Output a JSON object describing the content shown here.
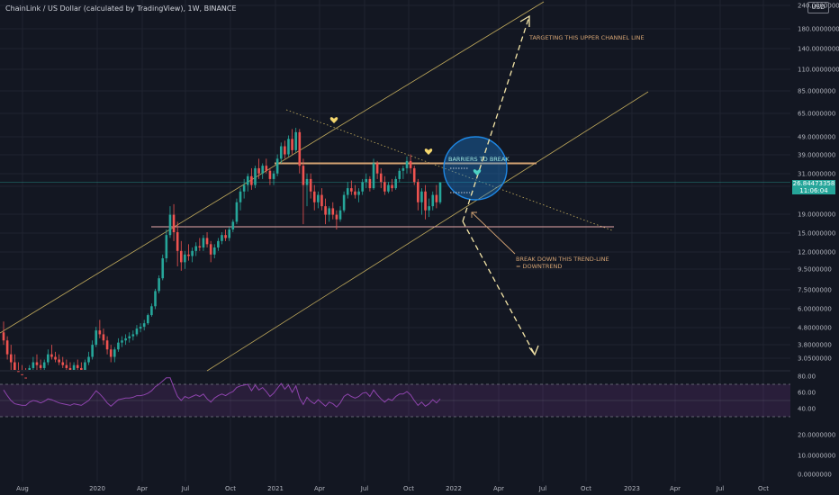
{
  "header": {
    "title": "ChainLink / US Dollar (calculated by TradingView), 1W, BINANCE",
    "currency": "USD"
  },
  "price_label": {
    "price": "26.84473358",
    "countdown": "11:06:04"
  },
  "colors": {
    "background": "#131722",
    "up": "#26a69a",
    "down": "#ef5350",
    "annotation": "#d4a373",
    "rsi": "#8e44ad",
    "channel": "#f5d76e",
    "circle": "#1e88e5"
  },
  "annotations": {
    "target": "TARGETING THIS UPPER CHANNEL LINE",
    "barriers": "BARRIERS TO BREAK",
    "breakdown_1": "BREAK DOWN THIS TREND-LINE",
    "breakdown_2": "= DOWNTREND"
  },
  "chart_data": [
    {
      "type": "candlestick",
      "scale": "log",
      "ylim": [
        3.05,
        240
      ],
      "x_ticks": [
        "Aug",
        "2020",
        "Apr",
        "Jul",
        "Oct",
        "2021",
        "Apr",
        "Jul",
        "Oct",
        "2022",
        "Apr",
        "Jul",
        "Oct",
        "2023",
        "Apr",
        "Jul",
        "Oct"
      ],
      "y_ticks": [
        "240.0000000",
        "180.0000000",
        "140.0000000",
        "110.0000000",
        "85.0000000",
        "65.0000000",
        "49.0000000",
        "39.0000000",
        "31.0000000",
        "24.0000000",
        "19.0000000",
        "15.0000000",
        "12.0000000",
        "9.5000000",
        "7.5000000",
        "6.0000000",
        "4.8000000",
        "3.8000000",
        "3.0500000"
      ],
      "horizontal_levels": [
        34,
        15.5
      ],
      "last_price": 26.84473358,
      "candles": [
        {
          "o": 4.2,
          "h": 4.8,
          "l": 3.6,
          "c": 3.8
        },
        {
          "o": 3.8,
          "h": 4.0,
          "l": 3.0,
          "c": 3.2
        },
        {
          "o": 3.2,
          "h": 3.6,
          "l": 2.6,
          "c": 2.9
        },
        {
          "o": 2.9,
          "h": 3.2,
          "l": 2.4,
          "c": 2.6
        },
        {
          "o": 2.6,
          "h": 2.9,
          "l": 2.3,
          "c": 2.5
        },
        {
          "o": 2.5,
          "h": 2.8,
          "l": 2.2,
          "c": 2.4
        },
        {
          "o": 2.4,
          "h": 2.7,
          "l": 2.1,
          "c": 2.3
        },
        {
          "o": 2.3,
          "h": 2.8,
          "l": 2.2,
          "c": 2.7
        },
        {
          "o": 2.7,
          "h": 3.1,
          "l": 2.5,
          "c": 2.9
        },
        {
          "o": 2.9,
          "h": 3.2,
          "l": 2.6,
          "c": 2.8
        },
        {
          "o": 2.8,
          "h": 3.0,
          "l": 2.5,
          "c": 2.7
        },
        {
          "o": 2.7,
          "h": 3.0,
          "l": 2.5,
          "c": 2.9
        },
        {
          "o": 2.9,
          "h": 3.4,
          "l": 2.8,
          "c": 3.2
        },
        {
          "o": 3.2,
          "h": 3.6,
          "l": 3.0,
          "c": 3.1
        },
        {
          "o": 3.1,
          "h": 3.3,
          "l": 2.9,
          "c": 3.0
        },
        {
          "o": 3.0,
          "h": 3.2,
          "l": 2.8,
          "c": 2.9
        },
        {
          "o": 2.9,
          "h": 3.1,
          "l": 2.7,
          "c": 2.8
        },
        {
          "o": 2.8,
          "h": 3.0,
          "l": 2.6,
          "c": 2.7
        },
        {
          "o": 2.7,
          "h": 2.9,
          "l": 2.5,
          "c": 2.6
        },
        {
          "o": 2.6,
          "h": 2.9,
          "l": 2.5,
          "c": 2.8
        },
        {
          "o": 2.8,
          "h": 3.0,
          "l": 2.6,
          "c": 2.7
        },
        {
          "o": 2.7,
          "h": 2.9,
          "l": 2.5,
          "c": 2.6
        },
        {
          "o": 2.6,
          "h": 3.0,
          "l": 2.5,
          "c": 2.9
        },
        {
          "o": 2.9,
          "h": 3.3,
          "l": 2.8,
          "c": 3.1
        },
        {
          "o": 3.1,
          "h": 3.8,
          "l": 3.0,
          "c": 3.6
        },
        {
          "o": 3.6,
          "h": 4.5,
          "l": 3.5,
          "c": 4.3
        },
        {
          "o": 4.3,
          "h": 4.9,
          "l": 3.9,
          "c": 4.1
        },
        {
          "o": 4.1,
          "h": 4.4,
          "l": 3.6,
          "c": 3.8
        },
        {
          "o": 3.8,
          "h": 4.0,
          "l": 3.2,
          "c": 3.4
        },
        {
          "o": 3.4,
          "h": 3.6,
          "l": 2.9,
          "c": 3.1
        },
        {
          "o": 3.1,
          "h": 3.5,
          "l": 2.9,
          "c": 3.4
        },
        {
          "o": 3.4,
          "h": 3.9,
          "l": 3.3,
          "c": 3.7
        },
        {
          "o": 3.7,
          "h": 4.0,
          "l": 3.5,
          "c": 3.8
        },
        {
          "o": 3.8,
          "h": 4.1,
          "l": 3.6,
          "c": 3.9
        },
        {
          "o": 3.9,
          "h": 4.2,
          "l": 3.7,
          "c": 4.0
        },
        {
          "o": 4.0,
          "h": 4.3,
          "l": 3.8,
          "c": 4.1
        },
        {
          "o": 4.1,
          "h": 4.6,
          "l": 4.0,
          "c": 4.4
        },
        {
          "o": 4.4,
          "h": 4.7,
          "l": 4.2,
          "c": 4.5
        },
        {
          "o": 4.5,
          "h": 4.9,
          "l": 4.3,
          "c": 4.7
        },
        {
          "o": 4.7,
          "h": 5.3,
          "l": 4.6,
          "c": 5.2
        },
        {
          "o": 5.2,
          "h": 6.0,
          "l": 5.1,
          "c": 5.8
        },
        {
          "o": 5.8,
          "h": 7.2,
          "l": 5.6,
          "c": 7.0
        },
        {
          "o": 7.0,
          "h": 8.5,
          "l": 6.8,
          "c": 8.2
        },
        {
          "o": 8.2,
          "h": 11.0,
          "l": 8.0,
          "c": 10.5
        },
        {
          "o": 10.5,
          "h": 15.0,
          "l": 10.0,
          "c": 14.0
        },
        {
          "o": 14.0,
          "h": 20.0,
          "l": 13.5,
          "c": 18.0
        },
        {
          "o": 18.0,
          "h": 20.5,
          "l": 13.0,
          "c": 14.5
        },
        {
          "o": 14.5,
          "h": 16.5,
          "l": 9.5,
          "c": 11.5
        },
        {
          "o": 11.5,
          "h": 13.0,
          "l": 9.0,
          "c": 10.0
        },
        {
          "o": 10.0,
          "h": 11.5,
          "l": 9.2,
          "c": 11.0
        },
        {
          "o": 11.0,
          "h": 12.5,
          "l": 10.2,
          "c": 10.8
        },
        {
          "o": 10.8,
          "h": 12.0,
          "l": 10.0,
          "c": 11.5
        },
        {
          "o": 11.5,
          "h": 12.8,
          "l": 10.8,
          "c": 12.2
        },
        {
          "o": 12.2,
          "h": 13.5,
          "l": 11.5,
          "c": 12.0
        },
        {
          "o": 12.0,
          "h": 14.0,
          "l": 11.5,
          "c": 13.5
        },
        {
          "o": 13.5,
          "h": 14.5,
          "l": 12.0,
          "c": 12.5
        },
        {
          "o": 12.5,
          "h": 13.0,
          "l": 10.0,
          "c": 11.0
        },
        {
          "o": 11.0,
          "h": 12.5,
          "l": 10.5,
          "c": 12.0
        },
        {
          "o": 12.0,
          "h": 13.5,
          "l": 11.5,
          "c": 13.0
        },
        {
          "o": 13.0,
          "h": 14.5,
          "l": 12.5,
          "c": 14.0
        },
        {
          "o": 14.0,
          "h": 15.0,
          "l": 13.0,
          "c": 13.5
        },
        {
          "o": 13.5,
          "h": 15.5,
          "l": 13.0,
          "c": 15.0
        },
        {
          "o": 15.0,
          "h": 17.0,
          "l": 14.5,
          "c": 16.5
        },
        {
          "o": 16.5,
          "h": 22.0,
          "l": 16.0,
          "c": 21.0
        },
        {
          "o": 21.0,
          "h": 25.0,
          "l": 19.0,
          "c": 24.0
        },
        {
          "o": 24.0,
          "h": 28.0,
          "l": 22.0,
          "c": 26.0
        },
        {
          "o": 26.0,
          "h": 30.0,
          "l": 24.0,
          "c": 29.0
        },
        {
          "o": 29.0,
          "h": 32.0,
          "l": 24.5,
          "c": 26.0
        },
        {
          "o": 26.0,
          "h": 33.0,
          "l": 25.0,
          "c": 32.0
        },
        {
          "o": 32.0,
          "h": 36.0,
          "l": 28.0,
          "c": 30.0
        },
        {
          "o": 30.0,
          "h": 34.0,
          "l": 28.0,
          "c": 33.0
        },
        {
          "o": 33.0,
          "h": 36.0,
          "l": 30.0,
          "c": 31.0
        },
        {
          "o": 31.0,
          "h": 32.0,
          "l": 26.0,
          "c": 28.0
        },
        {
          "o": 28.0,
          "h": 31.0,
          "l": 26.0,
          "c": 30.0
        },
        {
          "o": 30.0,
          "h": 38.0,
          "l": 29.0,
          "c": 36.0
        },
        {
          "o": 36.0,
          "h": 44.0,
          "l": 34.0,
          "c": 42.0
        },
        {
          "o": 42.0,
          "h": 45.0,
          "l": 36.0,
          "c": 38.0
        },
        {
          "o": 38.0,
          "h": 48.0,
          "l": 37.0,
          "c": 46.0
        },
        {
          "o": 46.0,
          "h": 52.0,
          "l": 38.0,
          "c": 40.0
        },
        {
          "o": 40.0,
          "h": 52.8,
          "l": 39.0,
          "c": 50.0
        },
        {
          "o": 50.0,
          "h": 52.0,
          "l": 30.0,
          "c": 33.0
        },
        {
          "o": 33.0,
          "h": 36.0,
          "l": 16.0,
          "c": 26.0
        },
        {
          "o": 26.0,
          "h": 30.0,
          "l": 20.0,
          "c": 28.0
        },
        {
          "o": 28.0,
          "h": 30.0,
          "l": 22.0,
          "c": 24.0
        },
        {
          "o": 24.0,
          "h": 26.0,
          "l": 19.0,
          "c": 21.0
        },
        {
          "o": 21.0,
          "h": 24.0,
          "l": 19.5,
          "c": 23.0
        },
        {
          "o": 23.0,
          "h": 25.0,
          "l": 19.0,
          "c": 20.0
        },
        {
          "o": 20.0,
          "h": 22.0,
          "l": 16.0,
          "c": 18.0
        },
        {
          "o": 18.0,
          "h": 20.0,
          "l": 16.5,
          "c": 19.5
        },
        {
          "o": 19.5,
          "h": 21.0,
          "l": 17.0,
          "c": 18.0
        },
        {
          "o": 18.0,
          "h": 19.0,
          "l": 15.0,
          "c": 17.0
        },
        {
          "o": 17.0,
          "h": 20.0,
          "l": 16.5,
          "c": 19.0
        },
        {
          "o": 19.0,
          "h": 24.0,
          "l": 18.5,
          "c": 23.0
        },
        {
          "o": 23.0,
          "h": 27.0,
          "l": 22.0,
          "c": 25.0
        },
        {
          "o": 25.0,
          "h": 27.5,
          "l": 23.0,
          "c": 24.0
        },
        {
          "o": 24.0,
          "h": 26.0,
          "l": 22.0,
          "c": 23.0
        },
        {
          "o": 23.0,
          "h": 25.0,
          "l": 21.0,
          "c": 24.0
        },
        {
          "o": 24.0,
          "h": 28.0,
          "l": 23.0,
          "c": 27.0
        },
        {
          "o": 27.0,
          "h": 30.0,
          "l": 25.0,
          "c": 28.0
        },
        {
          "o": 28.0,
          "h": 29.0,
          "l": 24.0,
          "c": 25.0
        },
        {
          "o": 25.0,
          "h": 36.0,
          "l": 24.5,
          "c": 34.0
        },
        {
          "o": 34.0,
          "h": 35.0,
          "l": 28.0,
          "c": 30.0
        },
        {
          "o": 30.0,
          "h": 32.0,
          "l": 25.0,
          "c": 27.0
        },
        {
          "o": 27.0,
          "h": 29.0,
          "l": 23.0,
          "c": 24.0
        },
        {
          "o": 24.0,
          "h": 27.0,
          "l": 23.5,
          "c": 26.0
        },
        {
          "o": 26.0,
          "h": 28.0,
          "l": 24.0,
          "c": 25.0
        },
        {
          "o": 25.0,
          "h": 29.0,
          "l": 24.5,
          "c": 28.0
        },
        {
          "o": 28.0,
          "h": 32.0,
          "l": 27.0,
          "c": 31.0
        },
        {
          "o": 31.0,
          "h": 33.0,
          "l": 28.0,
          "c": 32.0
        },
        {
          "o": 32.0,
          "h": 37.0,
          "l": 30.0,
          "c": 35.0
        },
        {
          "o": 35.0,
          "h": 38.0,
          "l": 30.0,
          "c": 32.0
        },
        {
          "o": 32.0,
          "h": 33.0,
          "l": 26.0,
          "c": 27.0
        },
        {
          "o": 27.0,
          "h": 28.0,
          "l": 19.0,
          "c": 21.0
        },
        {
          "o": 21.0,
          "h": 25.0,
          "l": 18.0,
          "c": 24.0
        },
        {
          "o": 24.0,
          "h": 26.0,
          "l": 17.0,
          "c": 19.0
        },
        {
          "o": 19.0,
          "h": 22.0,
          "l": 17.5,
          "c": 20.0
        },
        {
          "o": 20.0,
          "h": 24.0,
          "l": 19.0,
          "c": 23.0
        },
        {
          "o": 23.0,
          "h": 26.0,
          "l": 19.5,
          "c": 21.0
        },
        {
          "o": 21.0,
          "h": 27.0,
          "l": 20.5,
          "c": 26.8
        }
      ]
    },
    {
      "type": "line",
      "name": "RSI",
      "ylim": [
        0,
        100
      ],
      "y_ticks": [
        "80.00",
        "60.00",
        "40.00",
        "20.0000000",
        "10.0000000",
        "0.0000000"
      ],
      "band": [
        70,
        30
      ],
      "mid": 50,
      "values": [
        63,
        56,
        50,
        46,
        45,
        44,
        44,
        48,
        50,
        49,
        47,
        49,
        52,
        51,
        49,
        47,
        46,
        45,
        44,
        46,
        45,
        44,
        47,
        50,
        56,
        62,
        58,
        53,
        47,
        43,
        47,
        51,
        52,
        53,
        53,
        54,
        56,
        56,
        57,
        59,
        62,
        67,
        70,
        74,
        78,
        81,
        66,
        55,
        50,
        55,
        53,
        55,
        57,
        55,
        58,
        52,
        48,
        53,
        56,
        58,
        56,
        59,
        61,
        66,
        68,
        69,
        70,
        62,
        69,
        63,
        66,
        61,
        55,
        59,
        65,
        71,
        64,
        69,
        60,
        68,
        53,
        45,
        54,
        49,
        46,
        51,
        47,
        43,
        48,
        46,
        42,
        47,
        55,
        58,
        55,
        53,
        55,
        59,
        60,
        55,
        63,
        57,
        52,
        48,
        52,
        50,
        55,
        58,
        58,
        61,
        57,
        50,
        44,
        48,
        43,
        46,
        51,
        47,
        52
      ]
    }
  ]
}
